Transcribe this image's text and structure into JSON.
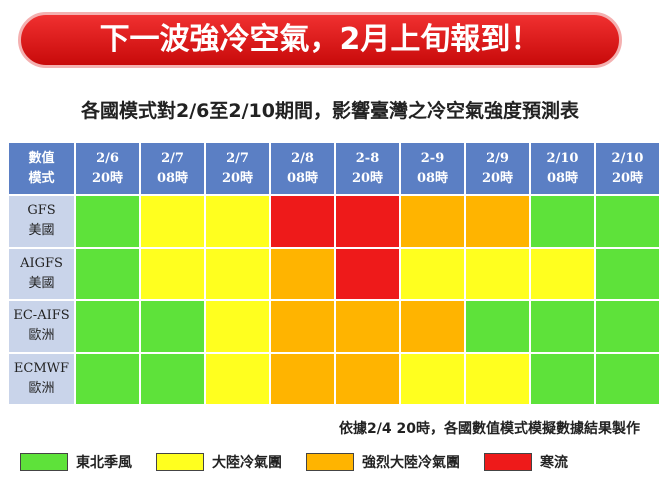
{
  "banner": {
    "title": "下一波強冷空氣，2月上旬報到！"
  },
  "subtitle": "各國模式對2/6至2/10期間，影響臺灣之冷空氣強度預測表",
  "table": {
    "corner": [
      "數值",
      "模式"
    ],
    "columns": [
      [
        "2/6",
        "20時"
      ],
      [
        "2/7",
        "08時"
      ],
      [
        "2/7",
        "20時"
      ],
      [
        "2/8",
        "08時"
      ],
      [
        "2-8",
        "20時"
      ],
      [
        "2-9",
        "08時"
      ],
      [
        "2/9",
        "20時"
      ],
      [
        "2/10",
        "08時"
      ],
      [
        "2/10",
        "20時"
      ]
    ],
    "rows": [
      {
        "model": [
          "GFS",
          "美國"
        ],
        "cells": [
          "#5ee23a",
          "#ffff1f",
          "#ffff1f",
          "#ee1a1a",
          "#ee1a1a",
          "#ffb400",
          "#ffb400",
          "#5ee23a",
          "#5ee23a"
        ]
      },
      {
        "model": [
          "AIGFS",
          "美國"
        ],
        "cells": [
          "#5ee23a",
          "#ffff1f",
          "#ffff1f",
          "#ffb400",
          "#ee1a1a",
          "#ffff1f",
          "#ffff1f",
          "#ffff1f",
          "#5ee23a"
        ]
      },
      {
        "model": [
          "EC-AIFS",
          "歐洲"
        ],
        "cells": [
          "#5ee23a",
          "#5ee23a",
          "#ffff1f",
          "#ffb400",
          "#ffb400",
          "#ffb400",
          "#5ee23a",
          "#5ee23a",
          "#5ee23a"
        ]
      },
      {
        "model": [
          "ECMWF",
          "歐洲"
        ],
        "cells": [
          "#5ee23a",
          "#5ee23a",
          "#ffff1f",
          "#ffb400",
          "#ffb400",
          "#ffff1f",
          "#ffff1f",
          "#5ee23a",
          "#5ee23a"
        ]
      }
    ]
  },
  "note": "依據2/4 20時，各國數值模式模擬數據結果製作",
  "legend": [
    {
      "label": "東北季風",
      "color": "#5ee23a"
    },
    {
      "label": "大陸冷氣團",
      "color": "#ffff1f"
    },
    {
      "label": "強烈大陸冷氣團",
      "color": "#ffb400"
    },
    {
      "label": "寒流",
      "color": "#ee1a1a"
    }
  ]
}
